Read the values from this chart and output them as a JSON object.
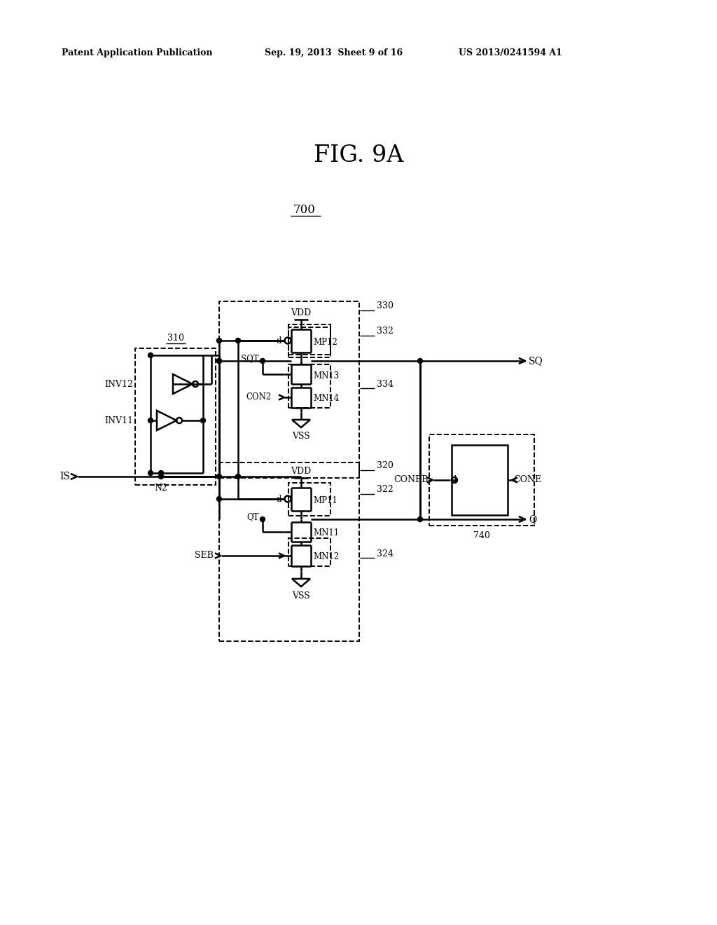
{
  "title": "FIG. 9A",
  "fig_label": "700",
  "patent_header": "Patent Application Publication",
  "patent_date": "Sep. 19, 2013  Sheet 9 of 16",
  "patent_num": "US 2013/0241594 A1",
  "bg_color": "#ffffff",
  "line_color": "#000000",
  "lw": 1.8,
  "dashed_lw": 1.4
}
